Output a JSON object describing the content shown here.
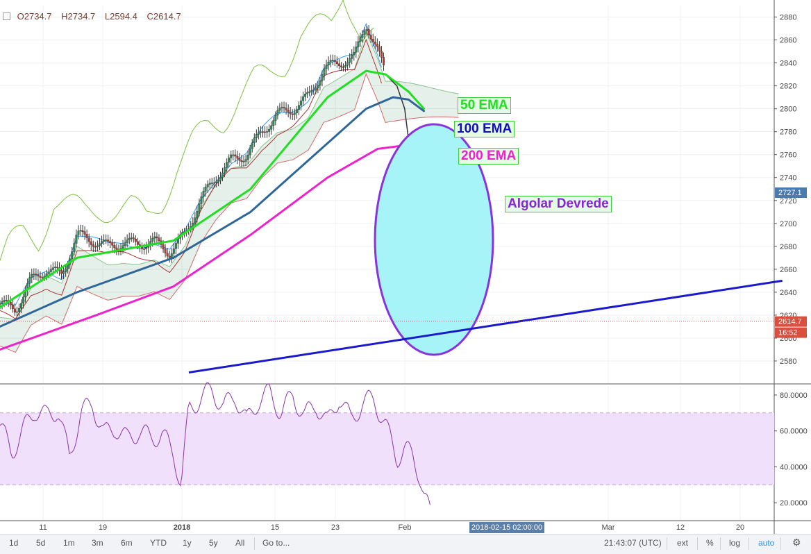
{
  "ohlc": {
    "open": "O2734.7",
    "high": "H2734.7",
    "low": "L2594.4",
    "close": "C2614.7"
  },
  "annotations": {
    "ema50": "50 EMA",
    "ema100": "100 EMA",
    "ema200": "200 EMA",
    "algo": "Algolar Devrede"
  },
  "colors": {
    "ema50": "#22dd22",
    "ema100": "#2e6699",
    "ema200": "#ee22cc",
    "trend": "#1a1acc",
    "ellipse_fill": "#a6f4f7",
    "ellipse_stroke": "#8833dd",
    "rsi": "#8833aa",
    "rsi_band": "#f1e0fb",
    "up": "#2e8b57",
    "down": "#c0392b"
  },
  "chart_data": [
    {
      "type": "candlestick",
      "title": "",
      "xlabel": "",
      "ylabel": "",
      "ylim": [
        2560,
        2890
      ],
      "grid": true,
      "x_ticks": [
        "11",
        "19",
        "2018",
        "15",
        "23",
        "Feb",
        "Mar",
        "12",
        "20"
      ],
      "y_ticks": [
        2580,
        2600,
        2620,
        2640,
        2660,
        2680,
        2700,
        2720,
        2740,
        2760,
        2780,
        2800,
        2820,
        2840,
        2860,
        2880
      ],
      "price_labels": {
        "current": "2614.7",
        "countdown": "16:52",
        "marker": "2727.1"
      },
      "crosshair_time": "2018-02-15 02:00:00",
      "close_path": [
        [
          0,
          2630
        ],
        [
          0.04,
          2625
        ],
        [
          0.08,
          2650
        ],
        [
          0.12,
          2660
        ],
        [
          0.16,
          2655
        ],
        [
          0.2,
          2690
        ],
        [
          0.24,
          2685
        ],
        [
          0.28,
          2680
        ],
        [
          0.32,
          2683
        ],
        [
          0.36,
          2682
        ],
        [
          0.4,
          2684
        ],
        [
          0.44,
          2675
        ],
        [
          0.48,
          2690
        ],
        [
          0.52,
          2720
        ],
        [
          0.56,
          2740
        ],
        [
          0.6,
          2755
        ],
        [
          0.64,
          2760
        ],
        [
          0.68,
          2780
        ],
        [
          0.72,
          2795
        ],
        [
          0.76,
          2800
        ],
        [
          0.8,
          2810
        ],
        [
          0.84,
          2835
        ],
        [
          0.88,
          2840
        ],
        [
          0.92,
          2845
        ],
        [
          0.95,
          2875
        ],
        [
          0.98,
          2850
        ],
        [
          1.0,
          2830
        ]
      ],
      "series": [
        {
          "name": "50 EMA",
          "values": [
            [
              0,
              2627
            ],
            [
              0.2,
              2670
            ],
            [
              0.45,
              2685
            ],
            [
              0.65,
              2730
            ],
            [
              0.85,
              2810
            ],
            [
              0.95,
              2833
            ],
            [
              1.0,
              2830
            ],
            [
              1.06,
              2815
            ],
            [
              1.1,
              2800
            ]
          ]
        },
        {
          "name": "100 EMA",
          "values": [
            [
              0,
              2610
            ],
            [
              0.2,
              2640
            ],
            [
              0.45,
              2670
            ],
            [
              0.65,
              2710
            ],
            [
              0.85,
              2770
            ],
            [
              0.95,
              2800
            ],
            [
              1.02,
              2810
            ],
            [
              1.06,
              2808
            ],
            [
              1.1,
              2798
            ]
          ]
        },
        {
          "name": "200 EMA",
          "values": [
            [
              0,
              2590
            ],
            [
              0.25,
              2620
            ],
            [
              0.45,
              2645
            ],
            [
              0.65,
              2690
            ],
            [
              0.85,
              2740
            ],
            [
              0.98,
              2765
            ],
            [
              1.05,
              2768
            ],
            [
              1.1,
              2765
            ]
          ]
        }
      ],
      "drop_path": [
        [
          1.0,
          2830
        ],
        [
          1.03,
          2820
        ],
        [
          1.05,
          2800
        ],
        [
          1.065,
          2760
        ],
        [
          1.075,
          2740
        ],
        [
          1.085,
          2735
        ],
        [
          1.1,
          2745
        ],
        [
          1.105,
          2725
        ],
        [
          1.11,
          2614.7
        ]
      ],
      "trendline": [
        [
          0.49,
          2570
        ],
        [
          2.03,
          2650
        ]
      ]
    },
    {
      "type": "line",
      "name": "RSI",
      "ylim": [
        10,
        85
      ],
      "y_ticks": [
        "20.0000",
        "40.0000",
        "60.0000",
        "80.0000"
      ],
      "bands": [
        30,
        70
      ],
      "values": [
        [
          0,
          63
        ],
        [
          0.03,
          48
        ],
        [
          0.06,
          60
        ],
        [
          0.09,
          72
        ],
        [
          0.12,
          68
        ],
        [
          0.15,
          72
        ],
        [
          0.18,
          45
        ],
        [
          0.21,
          70
        ],
        [
          0.24,
          75
        ],
        [
          0.27,
          58
        ],
        [
          0.3,
          62
        ],
        [
          0.33,
          55
        ],
        [
          0.36,
          60
        ],
        [
          0.39,
          56
        ],
        [
          0.42,
          58
        ],
        [
          0.45,
          48
        ],
        [
          0.47,
          30
        ],
        [
          0.49,
          72
        ],
        [
          0.52,
          78
        ],
        [
          0.55,
          83
        ],
        [
          0.58,
          73
        ],
        [
          0.61,
          80
        ],
        [
          0.64,
          65
        ],
        [
          0.67,
          77
        ],
        [
          0.7,
          81
        ],
        [
          0.73,
          70
        ],
        [
          0.76,
          80
        ],
        [
          0.79,
          68
        ],
        [
          0.82,
          75
        ],
        [
          0.85,
          64
        ],
        [
          0.88,
          79
        ],
        [
          0.91,
          66
        ],
        [
          0.94,
          75
        ],
        [
          0.97,
          78
        ],
        [
          1.0,
          63
        ],
        [
          1.03,
          45
        ],
        [
          1.05,
          50
        ],
        [
          1.07,
          46
        ],
        [
          1.09,
          35
        ],
        [
          1.1,
          25
        ],
        [
          1.11,
          18
        ],
        [
          1.12,
          10
        ]
      ]
    }
  ],
  "bottombar": {
    "ranges": [
      "1d",
      "5d",
      "1m",
      "3m",
      "6m",
      "YTD",
      "1y",
      "5y",
      "All"
    ],
    "goto": "Go to...",
    "clock": "21:43:07 (UTC)",
    "ext": "ext",
    "pct": "%",
    "log": "log",
    "auto": "auto"
  }
}
